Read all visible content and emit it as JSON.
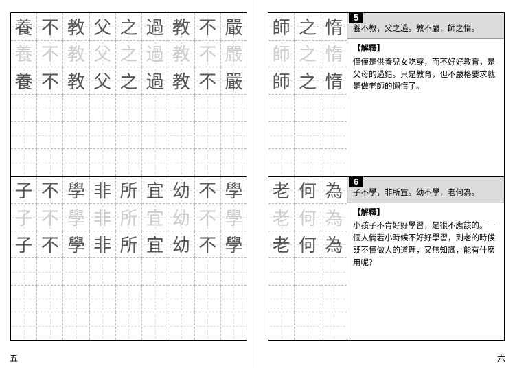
{
  "left_page": {
    "page_number": "五",
    "sections": [
      {
        "characters": [
          "養",
          "不",
          "教",
          "父",
          "之",
          "過",
          "教",
          "不",
          "嚴"
        ],
        "rows": [
          {
            "shade": "dark"
          },
          {
            "shade": "light"
          },
          {
            "shade": "dark"
          },
          {
            "shade": "empty"
          },
          {
            "shade": "empty"
          },
          {
            "shade": "empty"
          }
        ]
      },
      {
        "characters": [
          "子",
          "不",
          "學",
          "非",
          "所",
          "宜",
          "幼",
          "不",
          "學"
        ],
        "rows": [
          {
            "shade": "dark"
          },
          {
            "shade": "light"
          },
          {
            "shade": "dark"
          },
          {
            "shade": "empty"
          },
          {
            "shade": "empty"
          },
          {
            "shade": "empty"
          }
        ]
      }
    ]
  },
  "right_page": {
    "page_number": "六",
    "entries": [
      {
        "badge": "5",
        "grid_chars": [
          "師",
          "之",
          "惰"
        ],
        "grid_rows": [
          {
            "shade": "dark"
          },
          {
            "shade": "light"
          },
          {
            "shade": "dark"
          },
          {
            "shade": "empty"
          },
          {
            "shade": "empty"
          },
          {
            "shade": "empty"
          }
        ],
        "sentence": "養不教，父之過。教不嚴，師之惰。",
        "heading": "【解釋】",
        "body": "僅僅是供養兒女吃穿，而不好好教育，是父母的過錯。只是教育，但不嚴格要求就是做老師的懶惰了。"
      },
      {
        "badge": "6",
        "grid_chars": [
          "老",
          "何",
          "為"
        ],
        "grid_rows": [
          {
            "shade": "dark"
          },
          {
            "shade": "light"
          },
          {
            "shade": "dark"
          },
          {
            "shade": "empty"
          },
          {
            "shade": "empty"
          },
          {
            "shade": "empty"
          }
        ],
        "sentence": "子不學，非所宜。幼不學，老何為。",
        "heading": "【解釋】",
        "body": "小孩子不肯好好學習，是很不應該的。一個人倘若小時候不好好學習，到老的時候既不懂做人的道理，又無知識，能有什麼用呢？"
      }
    ]
  }
}
